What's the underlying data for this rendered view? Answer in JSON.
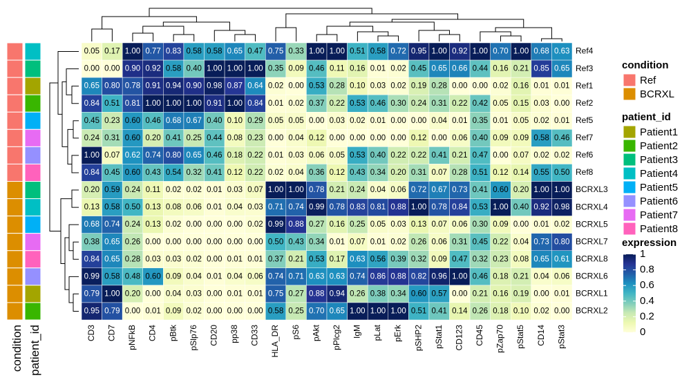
{
  "chart_data": {
    "type": "heatmap",
    "columns": [
      "CD3",
      "CD7",
      "pNFkB",
      "CD4",
      "pBtk",
      "pSlp76",
      "CD20",
      "pp38",
      "CD33",
      "HLA_DR",
      "pS6",
      "pAkt",
      "pPlcg2",
      "IgM",
      "pLat",
      "pErk",
      "pSHP2",
      "pStat1",
      "CD123",
      "CD45",
      "pZap70",
      "pStat5",
      "CD14",
      "pStat3"
    ],
    "rows": [
      "Ref4",
      "Ref3",
      "Ref1",
      "Ref2",
      "Ref5",
      "Ref7",
      "Ref6",
      "Ref8",
      "BCRXL3",
      "BCRXL4",
      "BCRXL5",
      "BCRXL7",
      "BCRXL8",
      "BCRXL6",
      "BCRXL1",
      "BCRXL2"
    ],
    "values": [
      [
        0.05,
        0.17,
        1,
        0.77,
        0.83,
        0.58,
        0.58,
        0.65,
        0.47,
        0.75,
        0.33,
        1,
        1,
        0.51,
        0.58,
        0.72,
        0.95,
        1,
        0.92,
        1,
        0.7,
        1,
        0.68,
        0.63
      ],
      [
        0,
        0,
        0.9,
        0.92,
        0.58,
        0.4,
        1,
        1,
        1,
        0.35,
        0.09,
        0.46,
        0.11,
        0.16,
        0.01,
        0.02,
        0.45,
        0.65,
        0.66,
        0.44,
        0.16,
        0.21,
        0.85,
        0.65
      ],
      [
        0.65,
        0.8,
        0.78,
        0.91,
        0.94,
        0.9,
        0.98,
        0.87,
        0.64,
        0.02,
        0,
        0.53,
        0.28,
        0.1,
        0.03,
        0.02,
        0.19,
        0.28,
        0,
        0,
        0.02,
        0.16,
        0.01,
        0.01
      ],
      [
        0.84,
        0.51,
        0.81,
        1,
        1,
        1,
        0.91,
        1,
        0.84,
        0.01,
        0.02,
        0.37,
        0.22,
        0.53,
        0.46,
        0.3,
        0.24,
        0.31,
        0.22,
        0.42,
        0.05,
        0.15,
        0.03,
        0
      ],
      [
        0.45,
        0.23,
        0.6,
        0.46,
        0.68,
        0.67,
        0.4,
        0.1,
        0.29,
        0.05,
        0.05,
        0,
        0.03,
        0.02,
        0.01,
        0,
        0,
        0.04,
        0.01,
        0.35,
        0.01,
        0.05,
        0.02,
        0.01
      ],
      [
        0.24,
        0.31,
        0.6,
        0.2,
        0.41,
        0.25,
        0.44,
        0.08,
        0.23,
        0,
        0.04,
        0.12,
        0,
        0,
        0,
        0,
        0.12,
        0,
        0.06,
        0.4,
        0.09,
        0.09,
        0.58,
        0.46
      ],
      [
        1,
        0.07,
        0.62,
        0.74,
        0.8,
        0.65,
        0.46,
        0.18,
        0.22,
        0.01,
        0.03,
        0.06,
        0.05,
        0.53,
        0.4,
        0.22,
        0.22,
        0.41,
        0.21,
        0.47,
        0,
        0.07,
        0.02,
        0.02
      ],
      [
        0.84,
        0.45,
        0.6,
        0.43,
        0.54,
        0.32,
        0.41,
        0.12,
        0.22,
        0.02,
        0.04,
        0.36,
        0.12,
        0.43,
        0.34,
        0.2,
        0.31,
        0.07,
        0.28,
        0.51,
        0.12,
        0.14,
        0.55,
        0.5
      ],
      [
        0.2,
        0.59,
        0.24,
        0.11,
        0.02,
        0.02,
        0.01,
        0.03,
        0.07,
        1,
        1,
        0.78,
        0.21,
        0.24,
        0.04,
        0.06,
        0.72,
        0.67,
        0.73,
        0.41,
        0.6,
        0.2,
        1,
        1
      ],
      [
        0.13,
        0.58,
        0.5,
        0.13,
        0.08,
        0.06,
        0.01,
        0.04,
        0.03,
        0.71,
        0.74,
        0.99,
        0.78,
        0.83,
        0.81,
        0.88,
        1,
        0.78,
        0.84,
        0.53,
        1,
        0.4,
        0.92,
        0.98
      ],
      [
        0.68,
        0.74,
        0.24,
        0.13,
        0.02,
        0,
        0,
        0,
        0.02,
        0.99,
        0.88,
        0.27,
        0.16,
        0.25,
        0.05,
        0.03,
        0.13,
        0.07,
        0.06,
        0.3,
        0.09,
        0,
        0.01,
        0.02
      ],
      [
        0.38,
        0.65,
        0.26,
        0,
        0,
        0,
        0,
        0,
        0,
        0.5,
        0.43,
        0.34,
        0.01,
        0.07,
        0.01,
        0.02,
        0.26,
        0.06,
        0.31,
        0.45,
        0.22,
        0.04,
        0.73,
        0.8
      ],
      [
        0.84,
        0.65,
        0.28,
        0.03,
        0.03,
        0.02,
        0,
        0.01,
        0.01,
        0.37,
        0.21,
        0.53,
        0.17,
        0.63,
        0.56,
        0.39,
        0.32,
        0.09,
        0.47,
        0.32,
        0.23,
        0.08,
        0.65,
        0.61
      ],
      [
        0.99,
        0.58,
        0.48,
        0.6,
        0.09,
        0.04,
        0.01,
        0.04,
        0.06,
        0.74,
        0.71,
        0.63,
        0.63,
        0.74,
        0.86,
        0.88,
        0.82,
        0.96,
        1,
        0.46,
        0.18,
        0.21,
        0.04,
        0.06
      ],
      [
        0.79,
        1,
        0.2,
        0,
        0.04,
        0.03,
        0,
        0.01,
        0.01,
        0.75,
        0.27,
        0.88,
        0.94,
        0.26,
        0.38,
        0.34,
        0.6,
        0.57,
        0,
        0.21,
        0.16,
        0.19,
        0,
        0.01
      ],
      [
        0.95,
        0.79,
        0,
        0.01,
        0.09,
        0.02,
        0,
        0,
        0,
        0.58,
        0.25,
        0.7,
        0.65,
        1,
        1,
        1,
        0.51,
        0.41,
        0.14,
        0.26,
        0.18,
        0.1,
        0.02,
        0
      ]
    ],
    "value_labels": [
      [
        "0.05",
        "0.17",
        "1.00",
        "0.77",
        "0.83",
        "0.58",
        "0.58",
        "0.65",
        "0.47",
        "0.75",
        "0.33",
        "1.00",
        "1.00",
        "0.51",
        "0.58",
        "0.72",
        "0.95",
        "1.00",
        "0.92",
        "1.00",
        "0.70",
        "1.00",
        "0.68",
        "0.63"
      ],
      [
        "0.00",
        "0.00",
        "0.90",
        "0.92",
        "0.58",
        "0.40",
        "1.00",
        "1.00",
        "1.00",
        "0.35",
        "0.09",
        "0.46",
        "0.11",
        "0.16",
        "0.01",
        "0.02",
        "0.45",
        "0.65",
        "0.66",
        "0.44",
        "0.16",
        "0.21",
        "0.85",
        "0.65"
      ],
      [
        "0.65",
        "0.80",
        "0.78",
        "0.91",
        "0.94",
        "0.90",
        "0.98",
        "0.87",
        "0.64",
        "0.02",
        "0.00",
        "0.53",
        "0.28",
        "0.10",
        "0.03",
        "0.02",
        "0.19",
        "0.28",
        "0.00",
        "0.00",
        "0.02",
        "0.16",
        "0.01",
        "0.01"
      ],
      [
        "0.84",
        "0.51",
        "0.81",
        "1.00",
        "1.00",
        "1.00",
        "0.91",
        "1.00",
        "0.84",
        "0.01",
        "0.02",
        "0.37",
        "0.22",
        "0.53",
        "0.46",
        "0.30",
        "0.24",
        "0.31",
        "0.22",
        "0.42",
        "0.05",
        "0.15",
        "0.03",
        "0.00"
      ],
      [
        "0.45",
        "0.23",
        "0.60",
        "0.46",
        "0.68",
        "0.67",
        "0.40",
        "0.10",
        "0.29",
        "0.05",
        "0.05",
        "0.00",
        "0.03",
        "0.02",
        "0.01",
        "0.00",
        "0.00",
        "0.04",
        "0.01",
        "0.35",
        "0.01",
        "0.05",
        "0.02",
        "0.01"
      ],
      [
        "0.24",
        "0.31",
        "0.60",
        "0.20",
        "0.41",
        "0.25",
        "0.44",
        "0.08",
        "0.23",
        "0.00",
        "0.04",
        "0.12",
        "0.00",
        "0.00",
        "0.00",
        "0.00",
        "0.12",
        "0.00",
        "0.06",
        "0.40",
        "0.09",
        "0.09",
        "0.58",
        "0.46"
      ],
      [
        "1.00",
        "0.07",
        "0.62",
        "0.74",
        "0.80",
        "0.65",
        "0.46",
        "0.18",
        "0.22",
        "0.01",
        "0.03",
        "0.06",
        "0.05",
        "0.53",
        "0.40",
        "0.22",
        "0.22",
        "0.41",
        "0.21",
        "0.47",
        "0.00",
        "0.07",
        "0.02",
        "0.02"
      ],
      [
        "0.84",
        "0.45",
        "0.60",
        "0.43",
        "0.54",
        "0.32",
        "0.41",
        "0.12",
        "0.22",
        "0.02",
        "0.04",
        "0.36",
        "0.12",
        "0.43",
        "0.34",
        "0.20",
        "0.31",
        "0.07",
        "0.28",
        "0.51",
        "0.12",
        "0.14",
        "0.55",
        "0.50"
      ],
      [
        "0.20",
        "0.59",
        "0.24",
        "0.11",
        "0.02",
        "0.02",
        "0.01",
        "0.03",
        "0.07",
        "1.00",
        "1.00",
        "0.78",
        "0.21",
        "0.24",
        "0.04",
        "0.06",
        "0.72",
        "0.67",
        "0.73",
        "0.41",
        "0.60",
        "0.20",
        "1.00",
        "1.00"
      ],
      [
        "0.13",
        "0.58",
        "0.50",
        "0.13",
        "0.08",
        "0.06",
        "0.01",
        "0.04",
        "0.03",
        "0.71",
        "0.74",
        "0.99",
        "0.78",
        "0.83",
        "0.81",
        "0.88",
        "1.00",
        "0.78",
        "0.84",
        "0.53",
        "1.00",
        "0.40",
        "0.92",
        "0.98"
      ],
      [
        "0.68",
        "0.74",
        "0.24",
        "0.13",
        "0.02",
        "0.00",
        "0.00",
        "0.00",
        "0.02",
        "0.99",
        "0.88",
        "0.27",
        "0.16",
        "0.25",
        "0.05",
        "0.03",
        "0.13",
        "0.07",
        "0.06",
        "0.30",
        "0.09",
        "0.00",
        "0.01",
        "0.02"
      ],
      [
        "0.38",
        "0.65",
        "0.26",
        "0.00",
        "0.00",
        "0.00",
        "0.00",
        "0.00",
        "0.00",
        "0.50",
        "0.43",
        "0.34",
        "0.01",
        "0.07",
        "0.01",
        "0.02",
        "0.26",
        "0.06",
        "0.31",
        "0.45",
        "0.22",
        "0.04",
        "0.73",
        "0.80"
      ],
      [
        "0.84",
        "0.65",
        "0.28",
        "0.03",
        "0.03",
        "0.02",
        "0.00",
        "0.01",
        "0.01",
        "0.37",
        "0.21",
        "0.53",
        "0.17",
        "0.63",
        "0.56",
        "0.39",
        "0.32",
        "0.09",
        "0.47",
        "0.32",
        "0.23",
        "0.08",
        "0.65",
        "0.61"
      ],
      [
        "0.99",
        "0.58",
        "0.48",
        "0.60",
        "0.09",
        "0.04",
        "0.01",
        "0.04",
        "0.06",
        "0.74",
        "0.71",
        "0.63",
        "0.63",
        "0.74",
        "0.86",
        "0.88",
        "0.82",
        "0.96",
        "1.00",
        "0.46",
        "0.18",
        "0.21",
        "0.04",
        "0.06"
      ],
      [
        "0.79",
        "1.00",
        "0.20",
        "0.00",
        "0.04",
        "0.03",
        "0.00",
        "0.01",
        "0.01",
        "0.75",
        "0.27",
        "0.88",
        "0.94",
        "0.26",
        "0.38",
        "0.34",
        "0.60",
        "0.57",
        "0.00",
        "0.21",
        "0.16",
        "0.19",
        "0.00",
        "0.01"
      ],
      [
        "0.95",
        "0.79",
        "0.00",
        "0.01",
        "0.09",
        "0.02",
        "0.00",
        "0.00",
        "0.00",
        "0.58",
        "0.25",
        "0.70",
        "0.65",
        "1.00",
        "1.00",
        "1.00",
        "0.51",
        "0.41",
        "0.14",
        "0.26",
        "0.18",
        "0.10",
        "0.02",
        "0.00"
      ]
    ],
    "clim": [
      0,
      1
    ],
    "colors": [
      "#ffffd9",
      "#edf8b1",
      "#c7e9b4",
      "#7fcdbb",
      "#41b6c4",
      "#1d91c0",
      "#225ea8",
      "#253494",
      "#081d58"
    ],
    "colorbar": {
      "title": "expression",
      "ticks": [
        0,
        0.2,
        0.4,
        0.6,
        0.8,
        1
      ]
    },
    "annotations": [
      {
        "name": "condition",
        "levels": [
          "Ref",
          "BCRXL"
        ],
        "colors": [
          "#f8766d",
          "#dc8e00"
        ],
        "values": [
          "Ref",
          "Ref",
          "Ref",
          "Ref",
          "Ref",
          "Ref",
          "Ref",
          "Ref",
          "BCRXL",
          "BCRXL",
          "BCRXL",
          "BCRXL",
          "BCRXL",
          "BCRXL",
          "BCRXL",
          "BCRXL"
        ]
      },
      {
        "name": "patient_id",
        "levels": [
          "Patient1",
          "Patient2",
          "Patient3",
          "Patient4",
          "Patient5",
          "Patient6",
          "Patient7",
          "Patient8"
        ],
        "colors": [
          "#a3a500",
          "#39b600",
          "#00bf7d",
          "#00bfc4",
          "#00b0f6",
          "#9590ff",
          "#e76bf3",
          "#ff62bc"
        ],
        "values": [
          "Patient4",
          "Patient3",
          "Patient1",
          "Patient2",
          "Patient5",
          "Patient7",
          "Patient6",
          "Patient8",
          "Patient3",
          "Patient4",
          "Patient5",
          "Patient7",
          "Patient8",
          "Patient6",
          "Patient1",
          "Patient2"
        ]
      }
    ]
  }
}
